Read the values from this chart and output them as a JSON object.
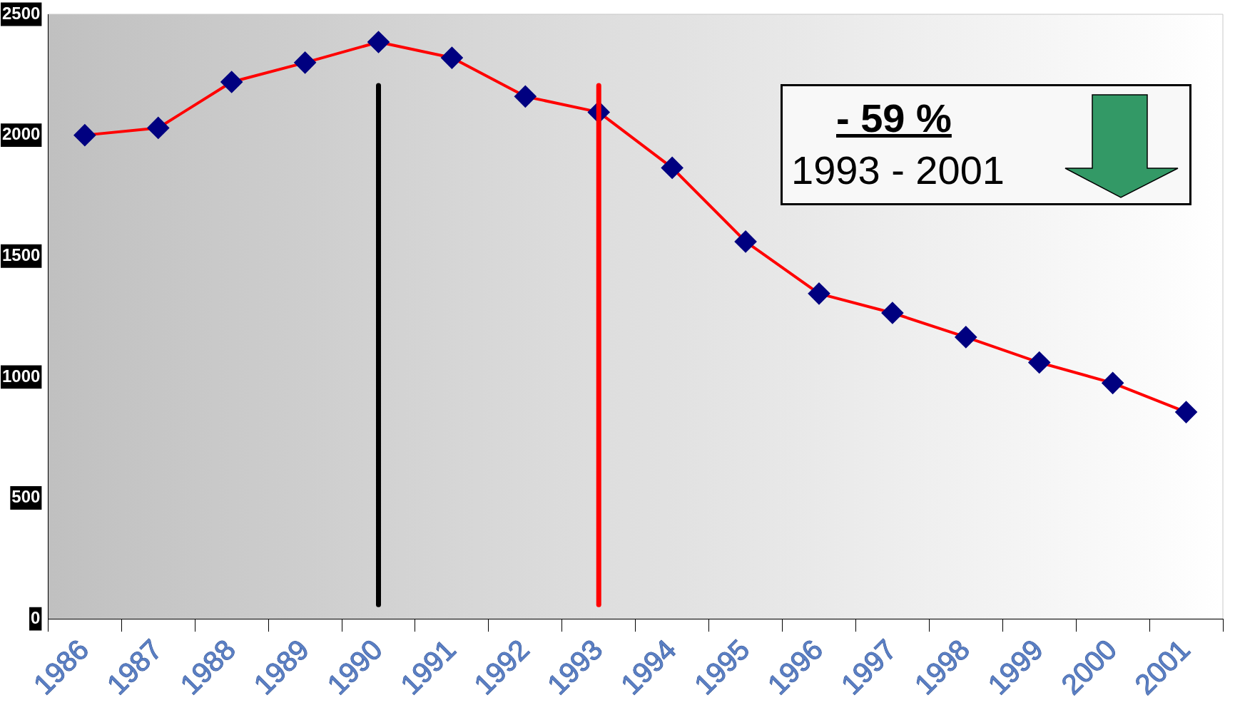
{
  "chart_data": {
    "type": "line",
    "categories": [
      "1986",
      "1987",
      "1988",
      "1989",
      "1990",
      "1991",
      "1992",
      "1993",
      "1994",
      "1995",
      "1996",
      "1997",
      "1998",
      "1999",
      "2000",
      "2001"
    ],
    "series": [
      {
        "color": "#ff0000",
        "values": [
          2000,
          2030,
          2220,
          2300,
          2385,
          2320,
          2160,
          2095,
          1865,
          1560,
          1345,
          1265,
          1165,
          1060,
          975,
          855
        ]
      }
    ],
    "ylim": [
      0,
      2500
    ],
    "yticks": [
      0,
      500,
      1000,
      1500,
      2000,
      2500
    ],
    "marker": "diamond",
    "grid": false,
    "legend": false,
    "ref_lines": [
      {
        "axis": "x",
        "value": "1990",
        "color": "#000000"
      },
      {
        "axis": "x",
        "value": "1993",
        "color": "#ff0000"
      }
    ],
    "annotations": [
      "- 59 %",
      "1993 - 2001"
    ]
  }
}
